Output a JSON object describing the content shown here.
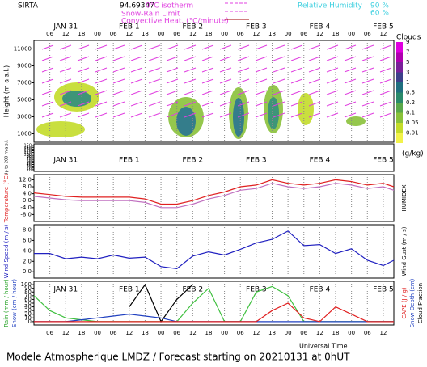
{
  "header": {
    "site": "SIRTA",
    "coord": "94.69347",
    "legend_isotherm": "0°C isotherm",
    "legend_snow_rain": "Snow-Rain Limit",
    "legend_convective": "Convective Heat. (°C/minute)",
    "legend_rh": "Relative Humidity",
    "rh_high": "90 %",
    "rh_low": "60 %"
  },
  "clouds_legend": {
    "title": "Clouds",
    "unit": "(g/kg)",
    "levels": [
      "9",
      "7",
      "5",
      "3",
      "1",
      "0.5",
      "0.2",
      "0.1",
      "0.05",
      "0.01"
    ],
    "colors": [
      "#e000e0",
      "#b000b0",
      "#7a1f9a",
      "#3d3f8a",
      "#1f6f7f",
      "#2a8a6a",
      "#5aa84a",
      "#8ac23a",
      "#c4dc2a",
      "#f2f24a"
    ]
  },
  "time_axis": {
    "xlim": [
      0,
      136
    ],
    "title": "Universal Time",
    "days": [
      {
        "value": 12,
        "label": "JAN 31"
      },
      {
        "value": 36,
        "label": "FEB 1"
      },
      {
        "value": 60,
        "label": "FEB 2"
      },
      {
        "value": 84,
        "label": "FEB 3"
      },
      {
        "value": 108,
        "label": "FEB 4"
      },
      {
        "value": 132,
        "label": "FEB 5"
      }
    ],
    "hours": [
      {
        "value": 6,
        "label": "06"
      },
      {
        "value": 12,
        "label": "12"
      },
      {
        "value": 18,
        "label": "18"
      },
      {
        "value": 24,
        "label": "00"
      },
      {
        "value": 30,
        "label": "06"
      },
      {
        "value": 36,
        "label": "12"
      },
      {
        "value": 42,
        "label": "18"
      },
      {
        "value": 48,
        "label": "00"
      },
      {
        "value": 54,
        "label": "06"
      },
      {
        "value": 60,
        "label": "12"
      },
      {
        "value": 66,
        "label": "18"
      },
      {
        "value": 72,
        "label": "00"
      },
      {
        "value": 78,
        "label": "06"
      },
      {
        "value": 84,
        "label": "12"
      },
      {
        "value": 90,
        "label": "18"
      },
      {
        "value": 96,
        "label": "00"
      },
      {
        "value": 102,
        "label": "06"
      },
      {
        "value": 108,
        "label": "12"
      },
      {
        "value": 114,
        "label": "18"
      },
      {
        "value": 120,
        "label": "00"
      },
      {
        "value": 126,
        "label": "06"
      },
      {
        "value": 132,
        "label": "12"
      }
    ]
  },
  "footer": "Modele Atmospherique LMDZ / Forecast starting on 20210131 at 0hUT",
  "chart_data": [
    {
      "type": "contour",
      "ylabel": "Height (m a.s.l.)",
      "ylim": [
        0,
        12000
      ],
      "yticks": [
        1000,
        3000,
        5000,
        7000,
        9000,
        11000
      ],
      "sub_ylabel": "Up to 200 m a.s.l.",
      "sub_ylim": [
        0,
        160
      ],
      "sub_yticks": [
        10,
        20,
        30,
        40,
        50,
        60,
        70,
        80,
        90,
        100,
        110,
        120,
        130,
        140,
        150
      ]
    },
    {
      "type": "line",
      "ylabel": "Temperature (°C)",
      "y2label": "HUMIDEX",
      "ylim": [
        -12,
        15
      ],
      "yticks": [
        {
          "value": -8,
          "label": "-8.0"
        },
        {
          "value": -4,
          "label": "-4.0"
        },
        {
          "value": 0,
          "label": "0.0"
        },
        {
          "value": 4,
          "label": "4.0"
        },
        {
          "value": 8,
          "label": "8.0"
        },
        {
          "value": 12,
          "label": "12.0"
        }
      ],
      "x": [
        0,
        6,
        12,
        18,
        24,
        30,
        36,
        42,
        48,
        54,
        60,
        66,
        72,
        78,
        84,
        90,
        96,
        102,
        108,
        114,
        120,
        126,
        132,
        136
      ],
      "series": [
        {
          "color": "#e02020",
          "values": [
            4.5,
            3.5,
            2.5,
            2,
            2,
            2,
            2,
            1,
            -2,
            -2,
            0,
            3,
            5,
            8,
            9,
            12,
            10,
            9,
            10,
            12,
            11,
            9,
            10,
            8
          ]
        },
        {
          "color": "#c070c0",
          "values": [
            2.5,
            1.5,
            0.5,
            0,
            0,
            0,
            0,
            -1,
            -4,
            -4,
            -2,
            1,
            3,
            6,
            7,
            10,
            8,
            7,
            8,
            10,
            9,
            7,
            8,
            6
          ]
        }
      ]
    },
    {
      "type": "line",
      "ylabel": "Wind Speed (m / s)",
      "y2label": "Wind Gust (m / s)",
      "ylim": [
        -1.2,
        9
      ],
      "yticks": [
        {
          "value": 0,
          "label": "0.0"
        },
        {
          "value": 2,
          "label": "2.0"
        },
        {
          "value": 4,
          "label": "4.0"
        },
        {
          "value": 6,
          "label": "6.0"
        },
        {
          "value": 8,
          "label": "8.0"
        }
      ],
      "x": [
        0,
        6,
        12,
        18,
        24,
        30,
        36,
        42,
        48,
        54,
        60,
        66,
        72,
        78,
        84,
        90,
        96,
        102,
        108,
        114,
        120,
        126,
        132,
        136
      ],
      "series": [
        {
          "color": "#2020c0",
          "values": [
            3.5,
            3.5,
            2.5,
            2.8,
            2.5,
            3.2,
            2.6,
            2.8,
            1,
            0.6,
            3,
            3.8,
            3.2,
            4.3,
            5.5,
            6.2,
            7.8,
            5,
            5.2,
            3.5,
            4.4,
            2.2,
            1.2,
            2.2
          ]
        }
      ]
    },
    {
      "type": "line",
      "ylabel": "Rain (mm / hour)",
      "ylabel2": "Snow (cm / hour)",
      "y2label": "CAPE (J / g)",
      "y2label2": "Snow Depth (cm)",
      "y2label3": "Cloud Fraction",
      "ylim": [
        -9,
        109
      ],
      "yticks": [
        0,
        10,
        20,
        30,
        40,
        50,
        60,
        70,
        80,
        90,
        100
      ],
      "x": [
        0,
        6,
        12,
        18,
        24,
        30,
        36,
        42,
        48,
        54,
        60,
        66,
        72,
        78,
        84,
        90,
        96,
        102,
        108,
        114,
        120,
        126,
        132,
        136
      ],
      "series": [
        {
          "color": "#40c040",
          "values": [
            70,
            30,
            10,
            5,
            0,
            0,
            0,
            0,
            0,
            0,
            50,
            90,
            0,
            0,
            80,
            95,
            70,
            0,
            0,
            0,
            0,
            0,
            0,
            0
          ]
        },
        {
          "color": "#2040c0",
          "values": [
            0,
            0,
            0,
            5,
            10,
            15,
            20,
            15,
            10,
            0,
            0,
            0,
            0,
            0,
            0,
            0,
            0,
            0,
            0,
            0,
            0,
            0,
            0,
            0
          ]
        },
        {
          "color": "#000000",
          "values": [
            null,
            null,
            null,
            null,
            null,
            null,
            40,
            100,
            0,
            60,
            100,
            null,
            null,
            null,
            null,
            null,
            null,
            null,
            null,
            null,
            null,
            null,
            null,
            null
          ]
        },
        {
          "color": "#e02020",
          "values": [
            0,
            0,
            0,
            0,
            0,
            0,
            0,
            0,
            0,
            0,
            0,
            0,
            0,
            0,
            0,
            30,
            50,
            10,
            0,
            40,
            20,
            0,
            0,
            0
          ]
        }
      ]
    }
  ]
}
